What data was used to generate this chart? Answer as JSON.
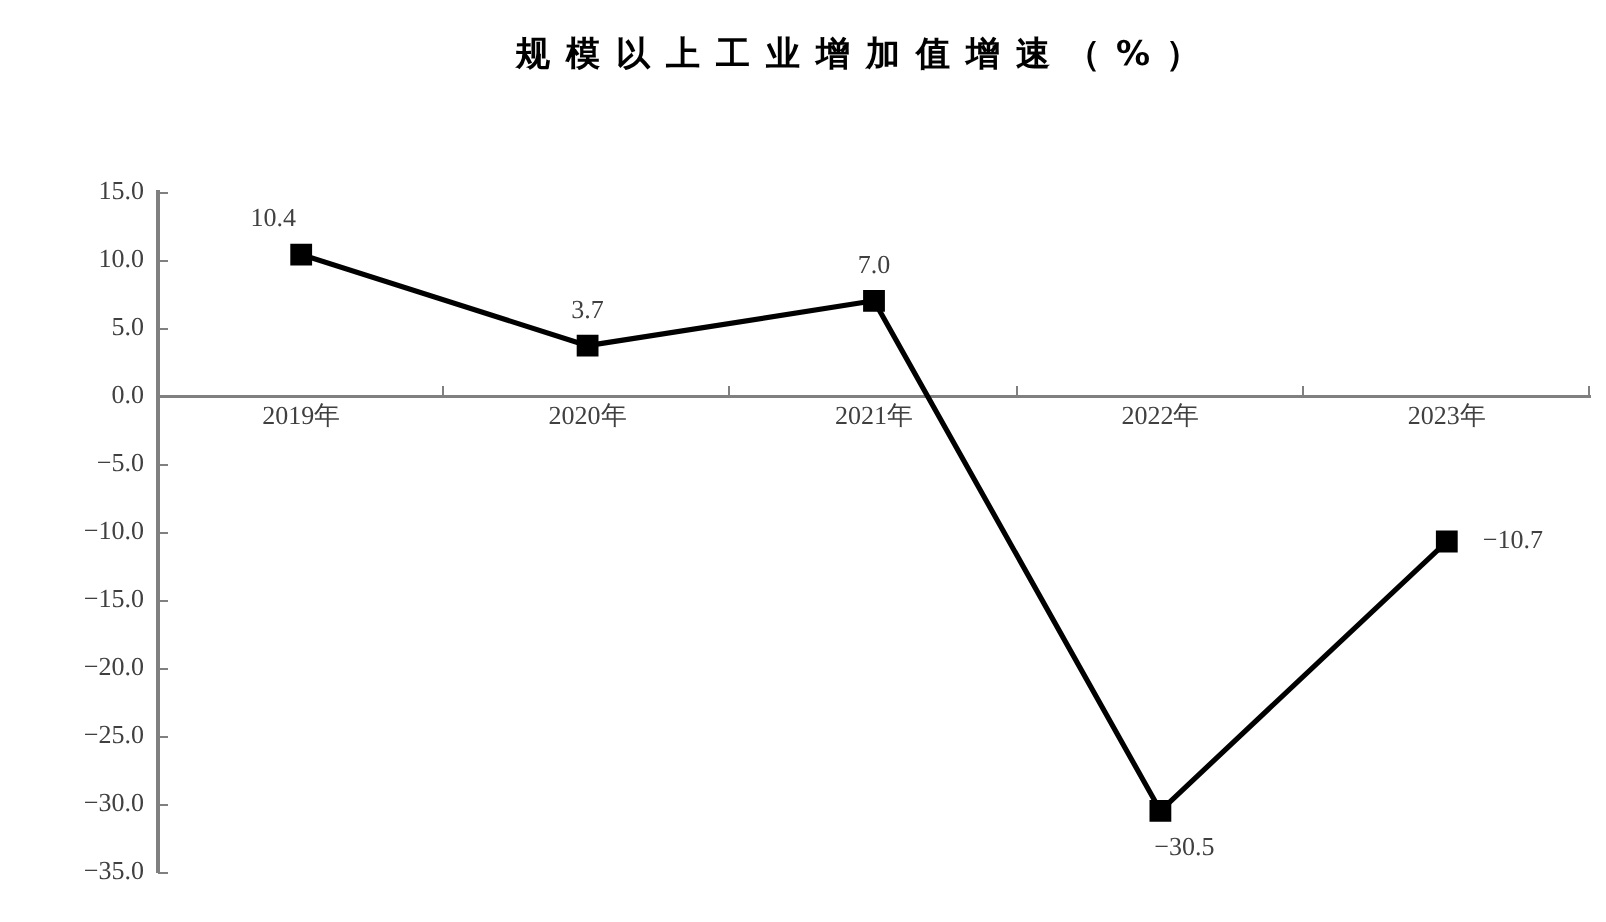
{
  "chart_data": {
    "type": "line",
    "title": "规模以上工业增加值增速（%）",
    "categories": [
      "2019年",
      "2020年",
      "2021年",
      "2022年",
      "2023年"
    ],
    "series": [
      {
        "color": "#000000",
        "values": [
          10.4,
          3.7,
          7.0,
          -30.5,
          -10.7
        ],
        "value_labels": [
          "10.4",
          "3.7",
          "7.0",
          "−30.5",
          "−10.7"
        ]
      }
    ],
    "ylim": [
      -35,
      15
    ],
    "yticks": [
      {
        "value": 15,
        "label": "15.0"
      },
      {
        "value": 10,
        "label": "10.0"
      },
      {
        "value": 5,
        "label": "5.0"
      },
      {
        "value": 0,
        "label": "0.0"
      },
      {
        "value": -5,
        "label": "−5.0"
      },
      {
        "value": -10,
        "label": "−10.0"
      },
      {
        "value": -15,
        "label": "−15.0"
      },
      {
        "value": -20,
        "label": "−20.0"
      },
      {
        "value": -25,
        "label": "−25.0"
      },
      {
        "value": -30,
        "label": "−30.0"
      },
      {
        "value": -35,
        "label": "−35.0"
      }
    ],
    "grid": false,
    "legend": false,
    "marker": "square",
    "line_style": "solid"
  }
}
